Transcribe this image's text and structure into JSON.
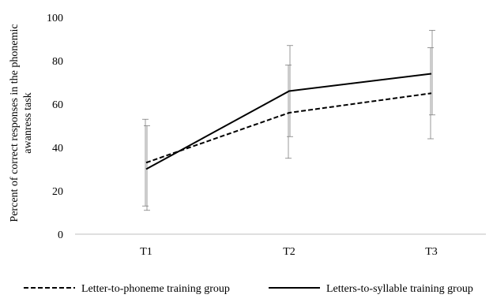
{
  "chart_data": {
    "type": "line",
    "title": "",
    "xlabel": "",
    "ylabel_lines": [
      "Percent of correct responses in the phonemic",
      "awanress task"
    ],
    "categories": [
      "T1",
      "T2",
      "T3"
    ],
    "ylim": [
      0,
      100
    ],
    "yticks": [
      0,
      20,
      40,
      60,
      80,
      100
    ],
    "grid": false,
    "legend_position": "bottom",
    "series": [
      {
        "name": "Letter-to-phoneme training group",
        "style": "dashed",
        "color": "#000000",
        "values": [
          33,
          56,
          65
        ],
        "error_low": [
          13,
          35,
          44
        ],
        "error_high": [
          53,
          78,
          86
        ]
      },
      {
        "name": "Letters-to-syllable training group",
        "style": "solid",
        "color": "#000000",
        "values": [
          30,
          66,
          74
        ],
        "error_low": [
          11,
          45,
          55
        ],
        "error_high": [
          50,
          87,
          94
        ]
      }
    ]
  }
}
